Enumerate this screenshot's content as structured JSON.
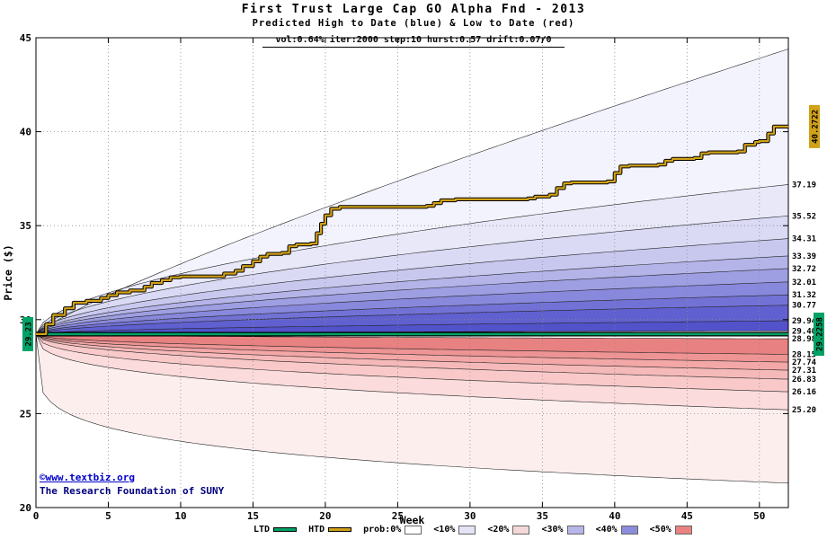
{
  "watermark": {
    "line1": "©www.textbiz.org",
    "line2": "The Research Foundation of SUNY"
  },
  "chart_data": {
    "type": "area",
    "title": "First Trust Large Cap GO Alpha Fnd  - 2013",
    "subtitle": "Predicted High to Date (blue) &  Low to Date (red)",
    "params": "vol:0.64% iter:2000 step:10 hurst:0.57 drift:0.07/0",
    "xlabel": "Week",
    "ylabel": "Price ($)",
    "xlim": [
      0,
      52
    ],
    "ylim": [
      20,
      45
    ],
    "xticks": [
      0,
      5,
      10,
      15,
      20,
      25,
      30,
      35,
      40,
      45,
      50
    ],
    "yticks": [
      20,
      25,
      30,
      35,
      40,
      45
    ],
    "grid": true,
    "legend_position": "bottom",
    "start_price": 29.23,
    "start_label": "29.23",
    "ltd": {
      "label": "LTD",
      "value": 29.2258,
      "edge_label": "29.2258",
      "color": "#00a266"
    },
    "htd": {
      "label": "HTD",
      "end_value": 40.2722,
      "edge_label": "40.2722",
      "color": "#d1a117",
      "steps": [
        [
          0,
          29.23
        ],
        [
          0.7,
          29.75
        ],
        [
          1.2,
          30.25
        ],
        [
          2,
          30.6
        ],
        [
          2.6,
          30.9
        ],
        [
          3.5,
          31.0
        ],
        [
          4.5,
          31.15
        ],
        [
          5,
          31.3
        ],
        [
          5.6,
          31.45
        ],
        [
          6.5,
          31.55
        ],
        [
          7.5,
          31.75
        ],
        [
          8,
          31.95
        ],
        [
          8.7,
          32.1
        ],
        [
          9.3,
          32.25
        ],
        [
          10,
          32.3
        ],
        [
          13,
          32.45
        ],
        [
          13.8,
          32.6
        ],
        [
          14.3,
          32.85
        ],
        [
          15,
          33.1
        ],
        [
          15.5,
          33.35
        ],
        [
          16,
          33.5
        ],
        [
          17,
          33.55
        ],
        [
          17.5,
          33.9
        ],
        [
          18,
          34.0
        ],
        [
          19,
          34.05
        ],
        [
          19.4,
          34.6
        ],
        [
          19.7,
          35.1
        ],
        [
          20,
          35.55
        ],
        [
          20.4,
          35.9
        ],
        [
          21,
          36.0
        ],
        [
          27,
          36.05
        ],
        [
          27.5,
          36.2
        ],
        [
          28,
          36.35
        ],
        [
          29,
          36.4
        ],
        [
          34,
          36.45
        ],
        [
          34.5,
          36.55
        ],
        [
          35.5,
          36.65
        ],
        [
          36,
          37.0
        ],
        [
          36.5,
          37.25
        ],
        [
          37,
          37.3
        ],
        [
          39.5,
          37.35
        ],
        [
          40,
          37.8
        ],
        [
          40.4,
          38.15
        ],
        [
          41,
          38.2
        ],
        [
          43,
          38.25
        ],
        [
          43.5,
          38.45
        ],
        [
          44,
          38.55
        ],
        [
          45.5,
          38.6
        ],
        [
          46,
          38.85
        ],
        [
          46.5,
          38.9
        ],
        [
          48.5,
          38.95
        ],
        [
          49,
          39.3
        ],
        [
          49.7,
          39.45
        ],
        [
          50,
          39.5
        ],
        [
          50.6,
          39.9
        ],
        [
          51,
          40.2722
        ],
        [
          52,
          40.2722
        ]
      ]
    },
    "bands": {
      "boundaries": [
        {
          "end": 44.4,
          "exp": 0.85,
          "label": ""
        },
        {
          "end": 37.19,
          "exp": 0.55,
          "label": "37.19"
        },
        {
          "end": 35.52,
          "exp": 0.55,
          "label": "35.52"
        },
        {
          "end": 34.31,
          "exp": 0.55,
          "label": "34.31"
        },
        {
          "end": 33.39,
          "exp": 0.55,
          "label": "33.39"
        },
        {
          "end": 32.72,
          "exp": 0.55,
          "label": "32.72"
        },
        {
          "end": 32.01,
          "exp": 0.55,
          "label": "32.01"
        },
        {
          "end": 31.32,
          "exp": 0.55,
          "label": "31.32"
        },
        {
          "end": 30.77,
          "exp": 0.55,
          "label": "30.77"
        },
        {
          "end": 29.94,
          "exp": 0.55,
          "label": "29.94"
        },
        {
          "end": 29.4,
          "exp": 0.5,
          "label": "29.40"
        },
        {
          "end": 28.98,
          "exp": 0.5,
          "label": "28.98"
        },
        {
          "end": 28.15,
          "exp": 0.45,
          "label": "28.15"
        },
        {
          "end": 27.74,
          "exp": 0.45,
          "label": "27.74"
        },
        {
          "end": 27.31,
          "exp": 0.45,
          "label": "27.31"
        },
        {
          "end": 26.83,
          "exp": 0.45,
          "label": "26.83"
        },
        {
          "end": 26.16,
          "exp": 0.4,
          "label": "26.16"
        },
        {
          "end": 25.2,
          "exp": 0.35,
          "label": "25.20"
        },
        {
          "end": 21.3,
          "exp": 0.2,
          "label": ""
        }
      ],
      "fills": [
        "#f3f3fd",
        "#e8e8f9",
        "#dadaf5",
        "#c8c8ef",
        "#b4b4e9",
        "#9e9ee3",
        "#8888dc",
        "#7272d6",
        "#6060d0",
        "#5252cb",
        "#ffffff",
        "#e88181",
        "#ee9494",
        "#f3a7a7",
        "#f6b9b9",
        "#f9c9c9",
        "#fbdbdb",
        "#fdeeee"
      ]
    },
    "legend": {
      "ltd_label": "LTD",
      "htd_label": "HTD",
      "prob_items": [
        {
          "label": "prob:0%",
          "color": "#ffffff"
        },
        {
          "label": "<10%",
          "color": "#e4e4f6"
        },
        {
          "label": "<20%",
          "color": "#f4d8d8"
        },
        {
          "label": "<30%",
          "color": "#b6b6ea"
        },
        {
          "label": "<40%",
          "color": "#8c8cdc"
        },
        {
          "label": "<50%",
          "color": "#ea8282"
        }
      ]
    }
  }
}
